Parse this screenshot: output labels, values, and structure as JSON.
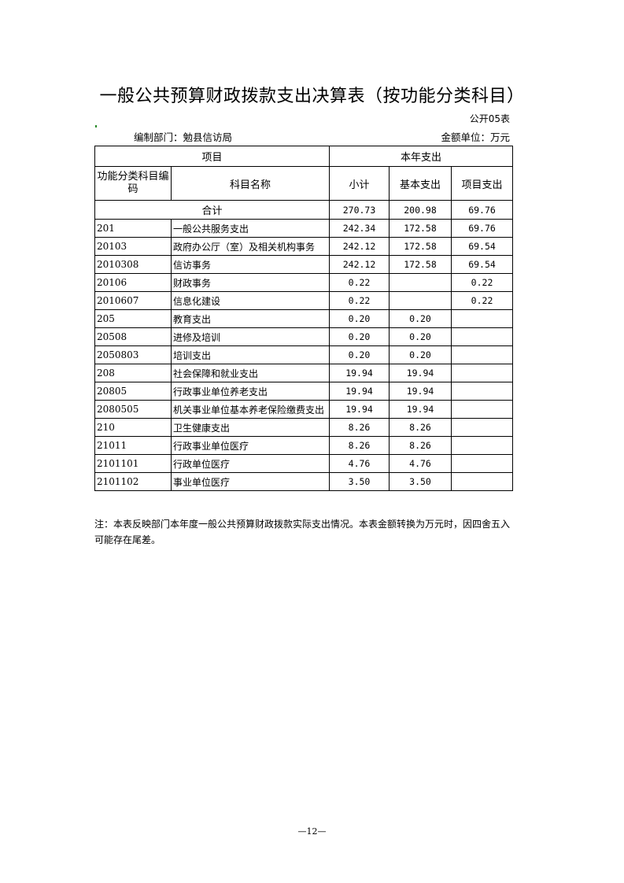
{
  "title": "一般公共预算财政拨款支出决算表（按功能分类科目）",
  "form_no": "公开05表",
  "department": "编制部门：勉县信访局",
  "unit": "金额单位：万元",
  "headers": {
    "item": "项目",
    "current_year": "本年支出",
    "code": "功能分类科目编码",
    "name": "科目名称",
    "subtotal": "小计",
    "basic": "基本支出",
    "project": "项目支出"
  },
  "total": {
    "label": "合计",
    "subtotal": "270.73",
    "basic": "200.98",
    "project": "69.76"
  },
  "rows": [
    {
      "code": "201",
      "name": "一般公共服务支出",
      "subtotal": "242.34",
      "basic": "172.58",
      "project": "69.76"
    },
    {
      "code": "20103",
      "name": "政府办公厅（室）及相关机构事务",
      "subtotal": "242.12",
      "basic": "172.58",
      "project": "69.54"
    },
    {
      "code": "2010308",
      "name": "信访事务",
      "subtotal": "242.12",
      "basic": "172.58",
      "project": "69.54"
    },
    {
      "code": "20106",
      "name": "财政事务",
      "subtotal": "0.22",
      "basic": "",
      "project": "0.22"
    },
    {
      "code": "2010607",
      "name": "信息化建设",
      "subtotal": "0.22",
      "basic": "",
      "project": "0.22"
    },
    {
      "code": "205",
      "name": "教育支出",
      "subtotal": "0.20",
      "basic": "0.20",
      "project": ""
    },
    {
      "code": "20508",
      "name": "进修及培训",
      "subtotal": "0.20",
      "basic": "0.20",
      "project": ""
    },
    {
      "code": "2050803",
      "name": "培训支出",
      "subtotal": "0.20",
      "basic": "0.20",
      "project": ""
    },
    {
      "code": "208",
      "name": "社会保障和就业支出",
      "subtotal": "19.94",
      "basic": "19.94",
      "project": ""
    },
    {
      "code": "20805",
      "name": "行政事业单位养老支出",
      "subtotal": "19.94",
      "basic": "19.94",
      "project": ""
    },
    {
      "code": "2080505",
      "name": "机关事业单位基本养老保险缴费支出",
      "subtotal": "19.94",
      "basic": "19.94",
      "project": ""
    },
    {
      "code": "210",
      "name": "卫生健康支出",
      "subtotal": "8.26",
      "basic": "8.26",
      "project": ""
    },
    {
      "code": "21011",
      "name": "行政事业单位医疗",
      "subtotal": "8.26",
      "basic": "8.26",
      "project": ""
    },
    {
      "code": "2101101",
      "name": "行政单位医疗",
      "subtotal": "4.76",
      "basic": "4.76",
      "project": ""
    },
    {
      "code": "2101102",
      "name": "事业单位医疗",
      "subtotal": "3.50",
      "basic": "3.50",
      "project": ""
    }
  ],
  "note": "注：本表反映部门本年度一般公共预算财政拨款实际支出情况。本表金额转换为万元时，因四舍五入可能存在尾差。",
  "page_number": "—12—"
}
